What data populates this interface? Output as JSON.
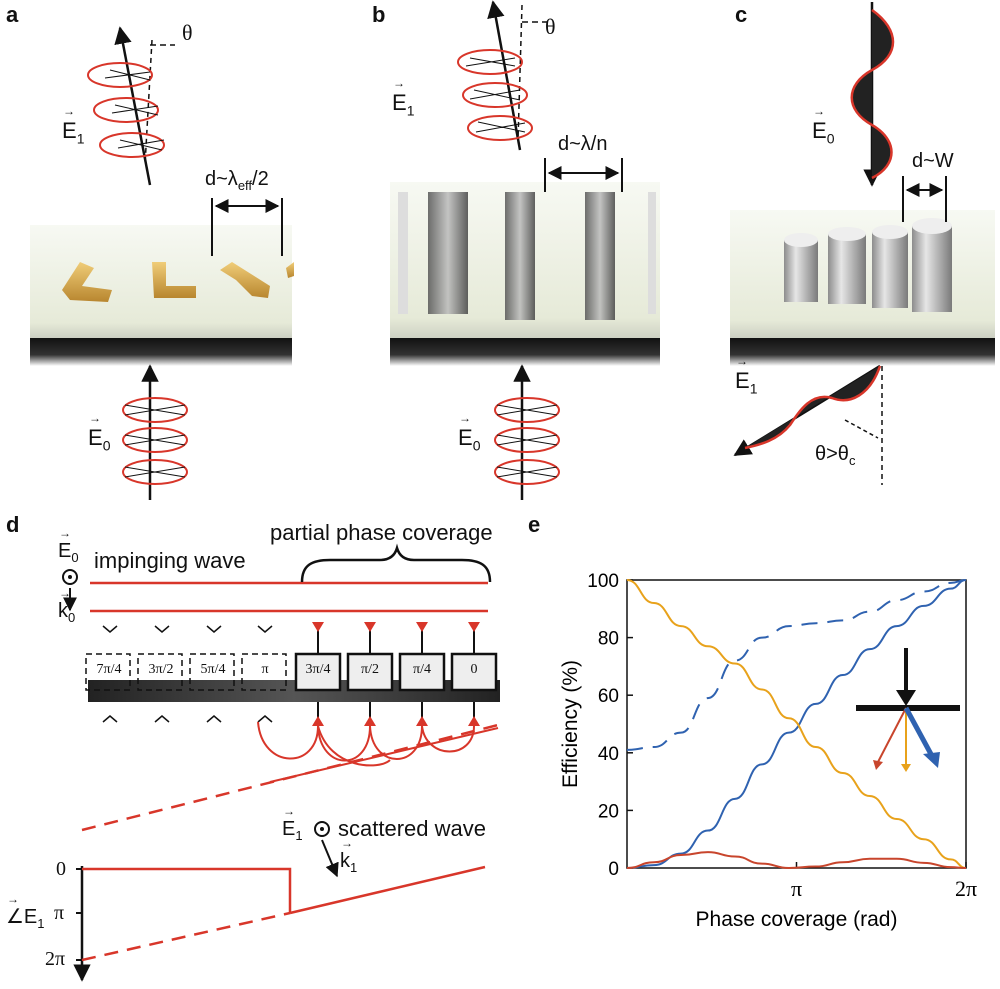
{
  "panels": {
    "a": {
      "letter": "a",
      "theta": "θ",
      "e1": "E",
      "e1_sub": "1",
      "e0": "E",
      "e0_sub": "0",
      "spacing": "d~λ",
      "spacing_sub": "eff",
      "spacing_tail": "/2"
    },
    "b": {
      "letter": "b",
      "theta": "θ",
      "e1": "E",
      "e1_sub": "1",
      "e0": "E",
      "e0_sub": "0",
      "spacing": "d~λ/n"
    },
    "c": {
      "letter": "c",
      "e0": "E",
      "e0_sub": "0",
      "e1": "E",
      "e1_sub": "1",
      "spacing": "d~W",
      "angle": "θ>θ",
      "angle_sub": "c"
    },
    "d": {
      "letter": "d",
      "e0": "E",
      "e0_sub": "0",
      "k0": "k",
      "k0_sub": "0",
      "impinging": "impinging wave",
      "partial": "partial phase coverage",
      "cells": [
        "7π/4",
        "3π/2",
        "5π/4",
        "π",
        "3π/4",
        "π/2",
        "π/4",
        "0"
      ],
      "e1": "E",
      "e1_sub": "1",
      "k1": "k",
      "k1_sub": "1",
      "scattered": "scattered wave",
      "phase_axis_symbol": "∠E",
      "phase_axis_sub": "1",
      "phase_ticks": [
        "0",
        "π",
        "2π"
      ]
    },
    "e": {
      "letter": "e"
    }
  },
  "colors": {
    "red": "#d8362a",
    "blue": "#2f62b0",
    "orange": "#e8a21b",
    "dark_red": "#c8452c"
  },
  "chart_data": {
    "type": "line",
    "title": "",
    "xlabel": "Phase coverage (rad)",
    "ylabel": "Efficiency (%)",
    "xlim": [
      0,
      6.2832
    ],
    "ylim": [
      0,
      100
    ],
    "xticks": [
      {
        "value": 3.1416,
        "label": "π"
      },
      {
        "value": 6.2832,
        "label": "2π"
      }
    ],
    "yticks": [
      0,
      20,
      40,
      60,
      80,
      100
    ],
    "grid": false,
    "series": [
      {
        "style": "solid",
        "color": "#2f62b0",
        "x": [
          0,
          0.5,
          1.0,
          1.5,
          2.0,
          2.5,
          3.0,
          3.5,
          4.0,
          4.5,
          5.0,
          5.5,
          6.0,
          6.2832
        ],
        "y": [
          0,
          1,
          5,
          13,
          24,
          36,
          47,
          57,
          67,
          76,
          84,
          91,
          97,
          100
        ]
      },
      {
        "style": "dashed",
        "color": "#2f62b0",
        "x": [
          0,
          0.5,
          1.0,
          1.5,
          2.0,
          2.5,
          3.0,
          3.5,
          4.0,
          4.5,
          5.0,
          5.5,
          6.0,
          6.2832
        ],
        "y": [
          41,
          42,
          47,
          59,
          72,
          80,
          84,
          85,
          86,
          89,
          93,
          96,
          99,
          100
        ]
      },
      {
        "style": "solid",
        "color": "#e8a21b",
        "x": [
          0,
          0.5,
          1.0,
          1.5,
          2.0,
          2.5,
          3.0,
          3.5,
          4.0,
          4.5,
          5.0,
          5.5,
          6.0,
          6.2832
        ],
        "y": [
          100,
          92,
          84,
          77,
          71,
          62,
          52,
          42,
          33,
          25,
          17,
          10,
          3,
          0
        ]
      },
      {
        "style": "solid",
        "color": "#c8452c",
        "x": [
          0,
          0.5,
          1.0,
          1.5,
          2.0,
          2.5,
          3.0,
          3.5,
          4.0,
          4.5,
          5.0,
          5.5,
          6.0,
          6.2832
        ],
        "y": [
          0,
          2,
          4.5,
          5.5,
          4,
          1.5,
          0,
          0.5,
          2,
          3.2,
          3.2,
          1.8,
          0.3,
          0
        ]
      }
    ]
  }
}
